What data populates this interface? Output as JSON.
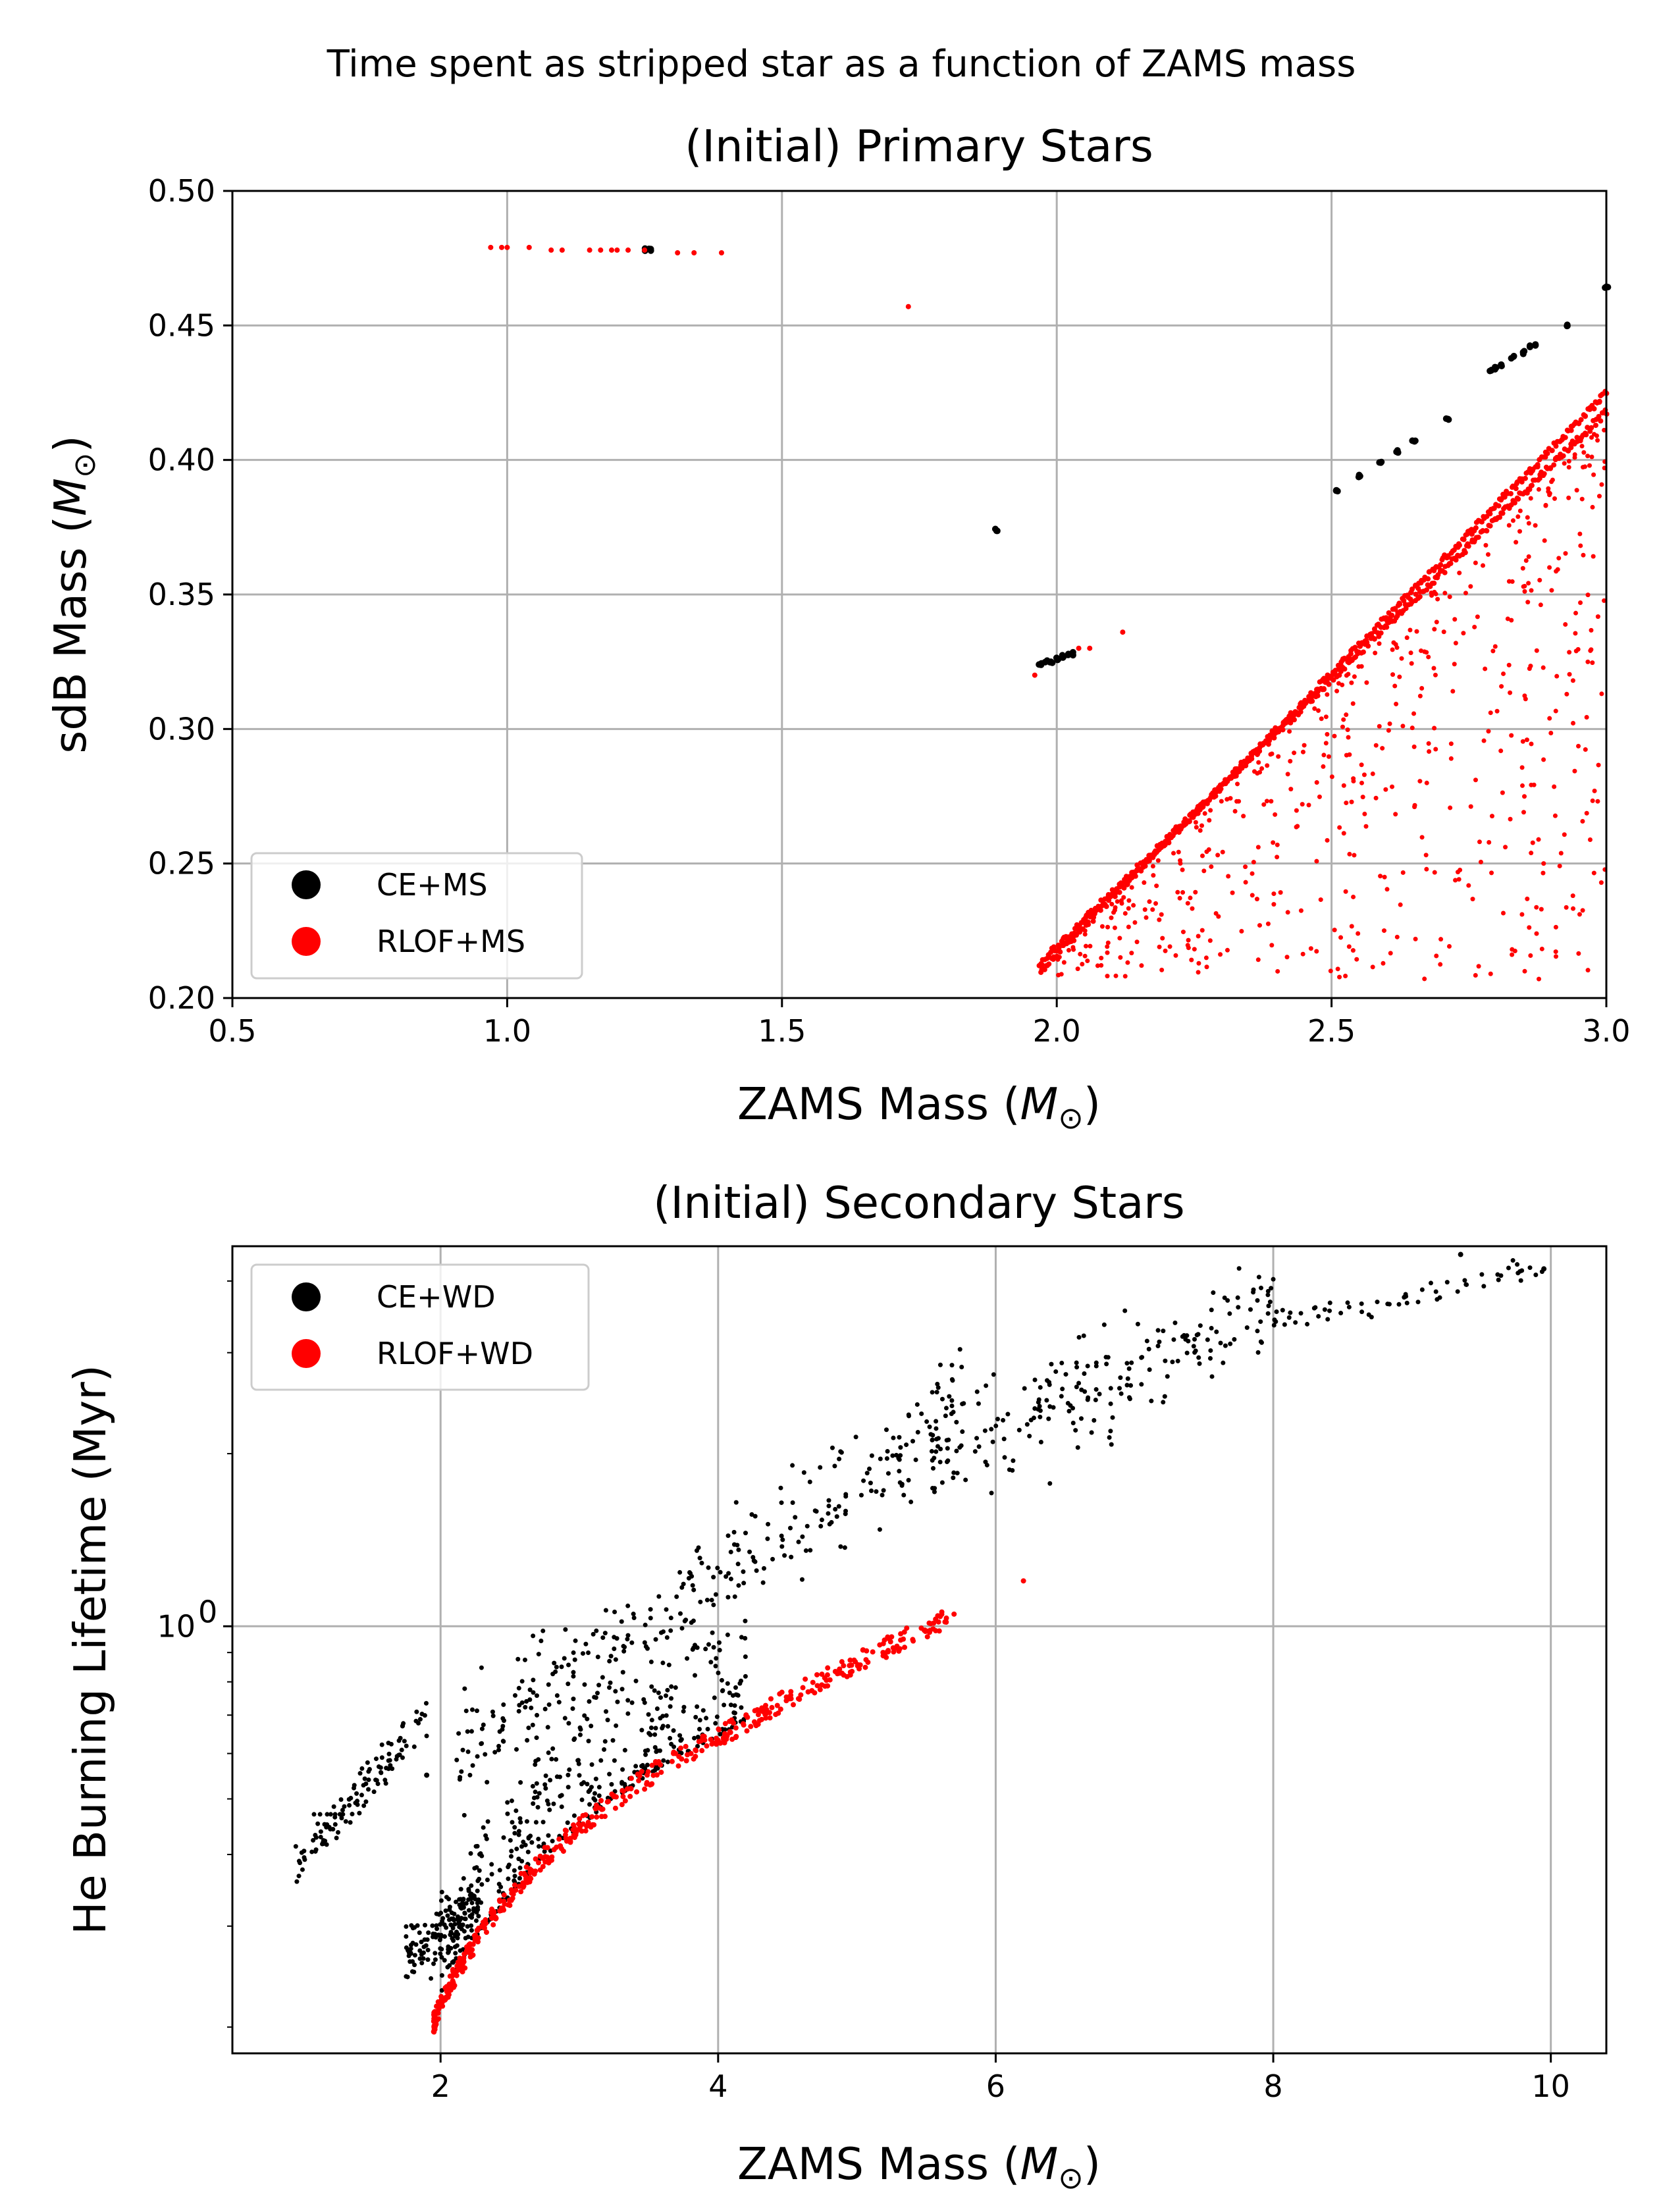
{
  "figure": {
    "suptitle": "Time spent as stripped star as a function of ZAMS mass"
  },
  "chart_data": [
    {
      "type": "scatter",
      "title": "(Initial) Primary Stars",
      "xlabel": "ZAMS Mass (M☉)",
      "ylabel": "sdB Mass (M☉)",
      "xlim": [
        0.5,
        3.0
      ],
      "ylim": [
        0.2,
        0.5
      ],
      "xscale": "linear",
      "yscale": "linear",
      "xticks": [
        0.5,
        1.0,
        1.5,
        2.0,
        2.5,
        3.0
      ],
      "xtick_labels": [
        "0.5",
        "1.0",
        "1.5",
        "2.0",
        "2.5",
        "3.0"
      ],
      "yticks": [
        0.2,
        0.25,
        0.3,
        0.35,
        0.4,
        0.45,
        0.5
      ],
      "ytick_labels": [
        "0.20",
        "0.25",
        "0.30",
        "0.35",
        "0.40",
        "0.45",
        "0.50"
      ],
      "grid": true,
      "legend_position": "lower-left",
      "series": [
        {
          "name": "CE+MS",
          "color": "#000000",
          "points": [
            [
              1.25,
              0.478
            ],
            [
              1.26,
              0.478
            ],
            [
              1.89,
              0.374
            ],
            [
              1.97,
              0.324
            ],
            [
              1.98,
              0.325
            ],
            [
              1.99,
              0.325
            ],
            [
              2.0,
              0.326
            ],
            [
              2.01,
              0.327
            ],
            [
              2.02,
              0.328
            ],
            [
              2.03,
              0.328
            ],
            [
              2.51,
              0.389
            ],
            [
              2.55,
              0.394
            ],
            [
              2.59,
              0.399
            ],
            [
              2.62,
              0.403
            ],
            [
              2.65,
              0.407
            ],
            [
              2.71,
              0.415
            ],
            [
              2.79,
              0.433
            ],
            [
              2.8,
              0.434
            ],
            [
              2.81,
              0.435
            ],
            [
              2.83,
              0.438
            ],
            [
              2.85,
              0.44
            ],
            [
              2.86,
              0.442
            ],
            [
              2.87,
              0.443
            ],
            [
              2.93,
              0.45
            ],
            [
              3.0,
              0.464
            ]
          ]
        },
        {
          "name": "RLOF+MS",
          "color": "#ff0000",
          "points": [
            [
              0.97,
              0.479
            ],
            [
              0.99,
              0.479
            ],
            [
              1.0,
              0.479
            ],
            [
              1.04,
              0.479
            ],
            [
              1.08,
              0.478
            ],
            [
              1.1,
              0.478
            ],
            [
              1.15,
              0.478
            ],
            [
              1.17,
              0.478
            ],
            [
              1.19,
              0.478
            ],
            [
              1.2,
              0.478
            ],
            [
              1.22,
              0.478
            ],
            [
              1.25,
              0.478
            ],
            [
              1.31,
              0.477
            ],
            [
              1.34,
              0.477
            ],
            [
              1.39,
              0.477
            ],
            [
              1.73,
              0.457
            ],
            [
              1.96,
              0.32
            ],
            [
              2.04,
              0.33
            ],
            [
              2.06,
              0.33
            ],
            [
              2.12,
              0.336
            ]
          ],
          "ridge_lines": [
            [
              [
                1.97,
                0.21
              ],
              [
                3.0,
                0.425
              ]
            ],
            [
              [
                1.97,
                0.213
              ],
              [
                3.0,
                0.418
              ]
            ]
          ],
          "scatter_region": {
            "x_range": [
              2.0,
              3.0
            ],
            "y_min": 0.207,
            "below_ridge": true,
            "count": 520
          }
        }
      ]
    },
    {
      "type": "scatter",
      "title": "(Initial) Secondary Stars",
      "xlabel": "ZAMS Mass (M☉)",
      "ylabel": "He Burning Lifetime (Myr)",
      "xlim": [
        0.5,
        10.4
      ],
      "ylim": [
        0.18,
        4.6
      ],
      "xscale": "linear",
      "yscale": "log",
      "xticks": [
        2,
        4,
        6,
        8,
        10
      ],
      "xtick_labels": [
        "2",
        "4",
        "6",
        "8",
        "10"
      ],
      "yticks_major": [
        1.0
      ],
      "ytick_label_base": "10",
      "ytick_label_exp": "0",
      "yticks_minor": [
        0.2,
        0.3,
        0.4,
        0.5,
        0.6,
        0.7,
        0.8,
        0.9,
        2.0,
        3.0,
        4.0
      ],
      "grid": true,
      "legend_position": "upper-left",
      "series": [
        {
          "name": "CE+WD",
          "color": "#000000",
          "clusters": [
            {
              "x_range": [
                1.0,
                1.3
              ],
              "y": 0.47,
              "count": 8,
              "kind": "flat"
            },
            {
              "x_range": [
                0.95,
                1.9
              ],
              "y_from": 0.38,
              "y_to": 0.7,
              "count": 110,
              "kind": "band",
              "spread": 0.05
            },
            {
              "x_range": [
                1.75,
                2.3
              ],
              "y_from": 0.26,
              "y_to": 0.34,
              "count": 150,
              "kind": "band",
              "spread": 0.08
            },
            {
              "x_range": [
                2.0,
                4.2
              ],
              "y_from": 0.28,
              "y_to": 0.55,
              "count": 380,
              "kind": "above_ridge",
              "spread": 0.06
            },
            {
              "x_range": [
                2.1,
                5.8
              ],
              "y_from": 0.6,
              "y_to": 2.4,
              "count": 330,
              "kind": "cloud"
            },
            {
              "x_range": [
                5.5,
                8.0
              ],
              "y_from": 1.9,
              "y_to": 3.6,
              "count": 190,
              "kind": "cloud"
            },
            {
              "x_range": [
                8.0,
                10.0
              ],
              "y_from": 3.4,
              "y_to": 4.2,
              "count": 60,
              "kind": "band",
              "spread": 0.03
            }
          ],
          "points": [
            [
              9.95,
              4.2
            ],
            [
              9.35,
              4.45
            ],
            [
              1.9,
              0.55
            ]
          ]
        },
        {
          "name": "RLOF+WD",
          "color": "#ff0000",
          "curve": {
            "x_range": [
              1.95,
              5.65
            ],
            "y_at_x": [
              [
                1.95,
                0.2
              ],
              [
                2.05,
                0.23
              ],
              [
                2.3,
                0.29
              ],
              [
                2.7,
                0.38
              ],
              [
                3.2,
                0.48
              ],
              [
                3.6,
                0.56
              ],
              [
                4.0,
                0.63
              ],
              [
                4.6,
                0.76
              ],
              [
                5.2,
                0.9
              ],
              [
                5.65,
                1.02
              ]
            ],
            "count": 480
          },
          "points": [
            [
              6.2,
              1.2
            ],
            [
              5.6,
              1.04
            ],
            [
              5.7,
              1.05
            ]
          ]
        }
      ]
    }
  ]
}
